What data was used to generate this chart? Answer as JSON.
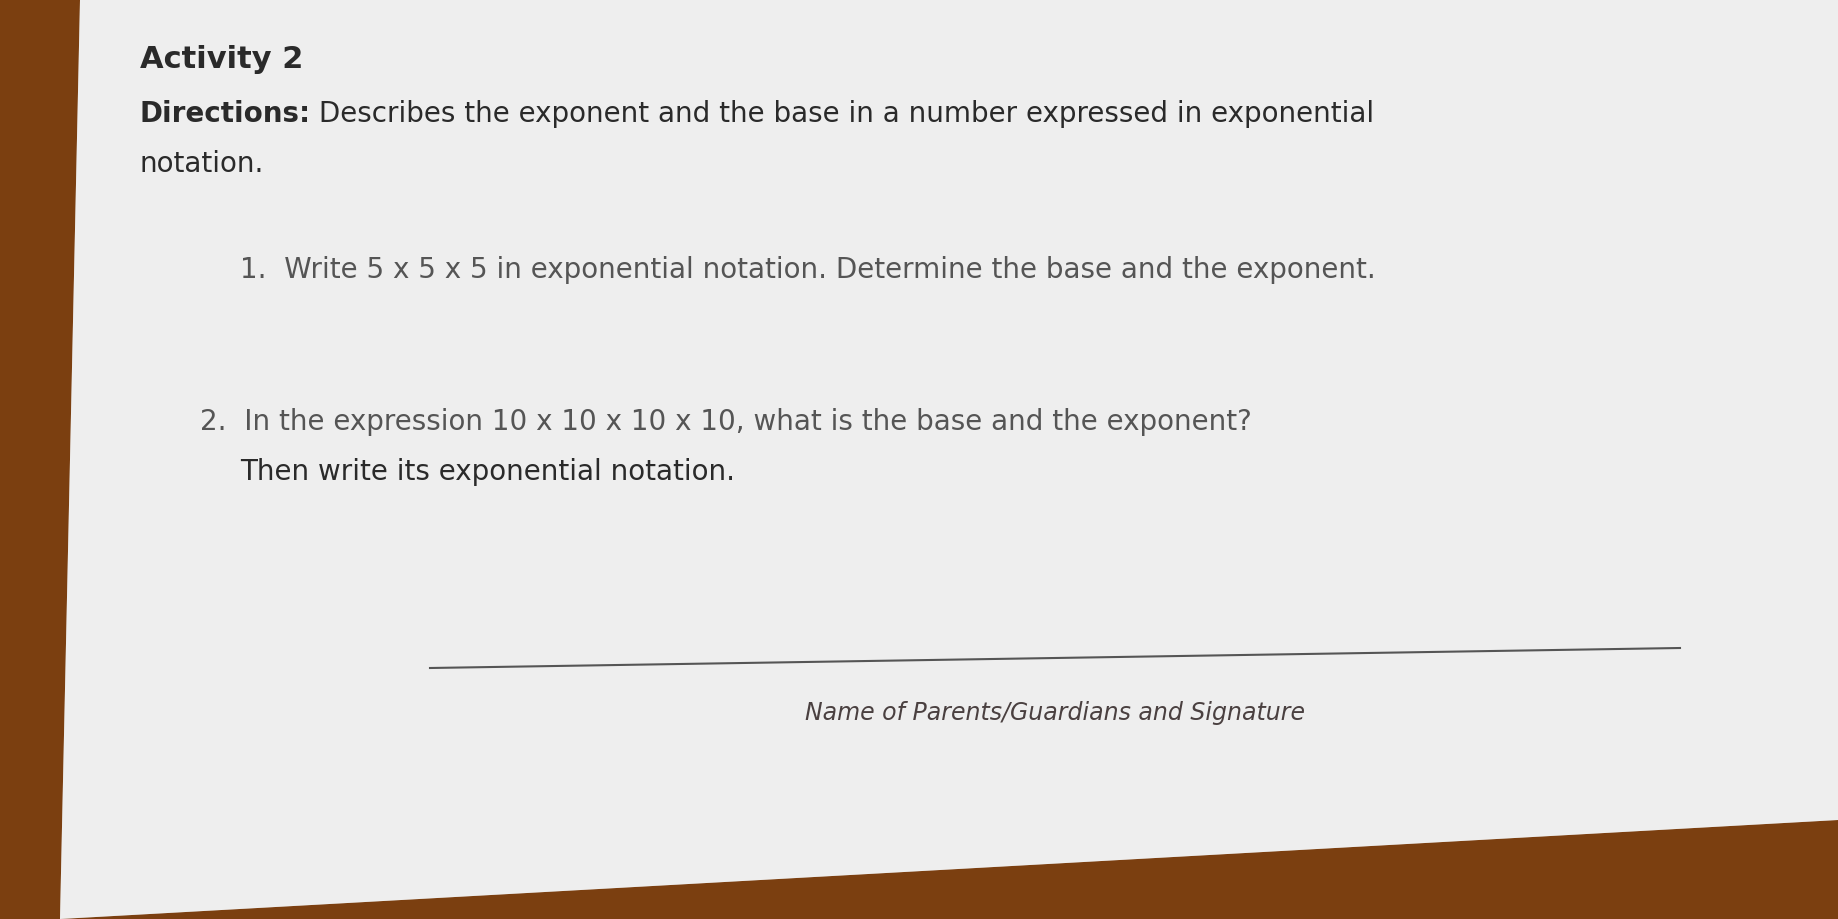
{
  "background_color": "#7B3F10",
  "paper_color": "#ebebeb",
  "title": "Activity 2",
  "directions_label": "Directions:",
  "directions_rest": " Describes the exponent and the base in a number expressed in exponential",
  "directions_wrap": "notation.",
  "item1": "1.  Write 5 x 5 x 5 in exponential notation. Determine the base and the exponent.",
  "item2_line1": "2.  In the expression 10 x 10 x 10 x 10, what is the base and the exponent?",
  "item2_line2": "     Then write its exponential notation.",
  "signature_label": "Name of Parents/Guardians and Signature",
  "title_fontsize": 22,
  "directions_fontsize": 20,
  "item_fontsize": 20,
  "signature_fontsize": 17,
  "text_color_dark": "#2a2a2a",
  "text_color_gray": "#555555",
  "text_color_light": "#666666",
  "signature_color": "#4a4040"
}
